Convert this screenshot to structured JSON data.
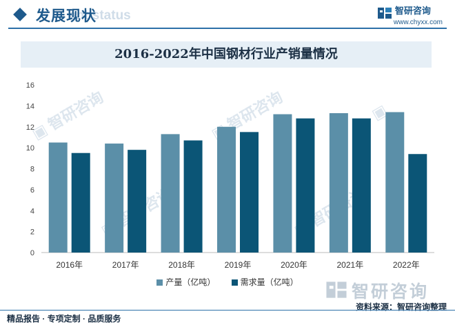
{
  "header": {
    "section_title": "发展现状",
    "ghost_text": "ent status",
    "brand_name": "智研咨询",
    "brand_url": "www.chyxx.com"
  },
  "colors": {
    "accent": "#1e5a8c",
    "series_production": "#5b8fa8",
    "series_demand": "#0b5576",
    "title_bg": "#e6eff6"
  },
  "chart_data": {
    "type": "bar",
    "title": "2016-2022年中国钢材行业产销量情况",
    "categories": [
      "2016年",
      "2017年",
      "2018年",
      "2019年",
      "2020年",
      "2021年",
      "2022年"
    ],
    "series": [
      {
        "name": "产量（亿吨）",
        "values": [
          10.5,
          10.4,
          11.3,
          12.0,
          13.2,
          13.3,
          13.4
        ]
      },
      {
        "name": "需求量（亿吨）",
        "values": [
          9.5,
          9.8,
          10.7,
          11.5,
          12.8,
          12.8,
          9.4
        ]
      }
    ],
    "xlabel": "",
    "ylabel": "",
    "ylim": [
      0,
      16
    ],
    "yticks": [
      0,
      2,
      4,
      6,
      8,
      10,
      12,
      14,
      16
    ],
    "grid": false,
    "legend_position": "bottom"
  },
  "source": {
    "logo_text": "智研咨询",
    "text": "资料来源：智研咨询整理"
  },
  "footer": {
    "text": "精品报告 · 专项定制 · 品质服务"
  }
}
